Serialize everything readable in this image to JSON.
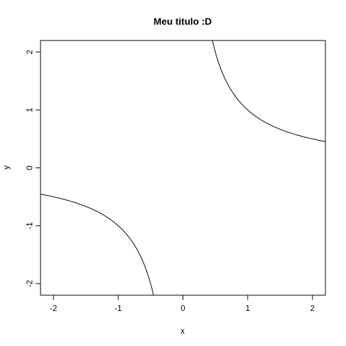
{
  "chart_data": {
    "type": "line",
    "title": "Meu titulo :D",
    "xlabel": "x",
    "ylabel": "y",
    "xlim": [
      -2.2,
      2.2
    ],
    "ylim": [
      -2.2,
      2.2
    ],
    "xticks": [
      -2,
      -1,
      0,
      1,
      2
    ],
    "yticks": [
      -2,
      -1,
      0,
      1,
      2
    ],
    "xtick_labels": [
      "-2",
      "-1",
      "0",
      "1",
      "2"
    ],
    "ytick_labels": [
      "-2",
      "-1",
      "0",
      "1",
      "2"
    ],
    "grid": false,
    "legend": "none",
    "line_color": "#000000",
    "series": [
      {
        "branch": "positive",
        "x": [
          0.45,
          0.5,
          0.6,
          0.7,
          0.8,
          0.9,
          1.0,
          1.2,
          1.4,
          1.6,
          1.8,
          2.0,
          2.2
        ],
        "y": [
          2.2,
          2.0,
          1.667,
          1.429,
          1.25,
          1.111,
          1.0,
          0.833,
          0.714,
          0.625,
          0.556,
          0.5,
          0.455
        ]
      },
      {
        "branch": "negative",
        "x": [
          -2.2,
          -2.0,
          -1.8,
          -1.6,
          -1.4,
          -1.2,
          -1.0,
          -0.9,
          -0.8,
          -0.7,
          -0.6,
          -0.5,
          -0.45
        ],
        "y": [
          -0.455,
          -0.5,
          -0.556,
          -0.625,
          -0.714,
          -0.833,
          -1.0,
          -1.111,
          -1.25,
          -1.429,
          -1.667,
          -2.0,
          -2.2
        ]
      }
    ]
  }
}
